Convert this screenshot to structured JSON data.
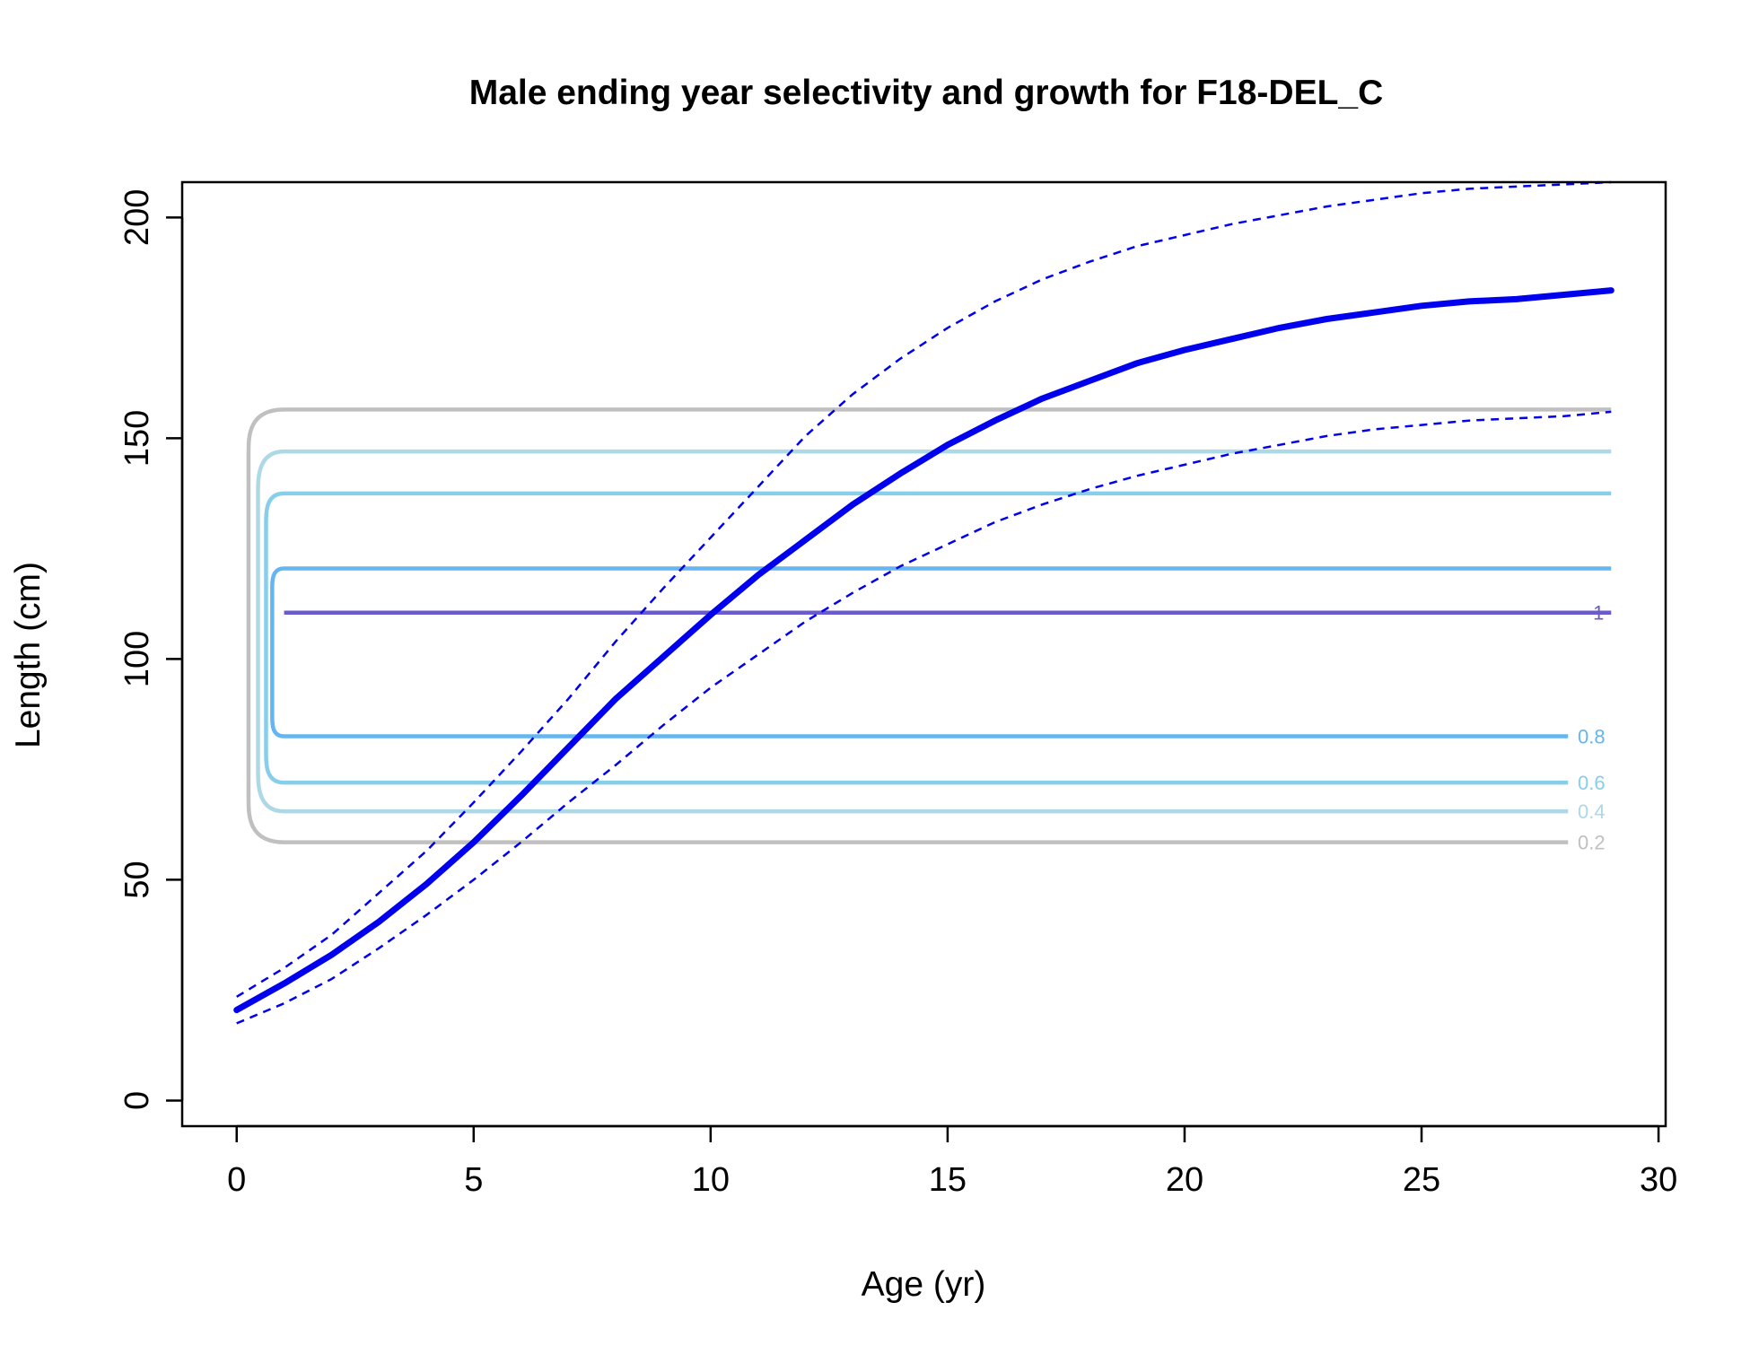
{
  "chart_data": {
    "type": "line",
    "title": "Male ending year selectivity and growth for F18-DEL_C",
    "xlabel": "Age (yr)",
    "ylabel": "Length (cm)",
    "xlim": [
      -1.15,
      30.15
    ],
    "ylim": [
      -5.8,
      208
    ],
    "xticks": [
      0,
      5,
      10,
      15,
      20,
      25,
      30
    ],
    "yticks": [
      0,
      50,
      100,
      150,
      200
    ],
    "grid": false,
    "legend": "none",
    "growth": {
      "color": "#0000ee",
      "age": [
        0,
        1,
        2,
        3,
        4,
        5,
        6,
        7,
        8,
        9,
        10,
        11,
        12,
        13,
        14,
        15,
        16,
        17,
        18,
        19,
        20,
        21,
        22,
        23,
        24,
        25,
        26,
        27,
        28,
        29
      ],
      "mean": [
        20.5,
        26.5,
        33.0,
        40.5,
        49.0,
        58.5,
        69.0,
        80.0,
        91.0,
        100.5,
        110.0,
        119.0,
        127.0,
        135.0,
        142.0,
        148.5,
        154.0,
        159.0,
        163.0,
        167.0,
        170.0,
        172.5,
        175.0,
        177.0,
        178.5,
        180.0,
        181.0,
        181.5,
        182.5,
        183.5
      ],
      "lower": [
        17.5,
        22.0,
        27.5,
        34.5,
        42.0,
        50.0,
        58.5,
        67.5,
        76.0,
        85.0,
        93.5,
        101.0,
        108.5,
        115.0,
        121.0,
        126.0,
        131.0,
        135.0,
        138.5,
        141.5,
        144.0,
        146.5,
        148.5,
        150.5,
        152.0,
        153.0,
        154.0,
        154.5,
        155.0,
        156.0
      ],
      "upper": [
        23.5,
        30.0,
        37.5,
        47.0,
        56.5,
        67.5,
        79.0,
        91.0,
        104.0,
        116.0,
        127.5,
        139.0,
        150.5,
        160.0,
        168.0,
        175.0,
        181.0,
        186.0,
        190.0,
        193.5,
        196.0,
        198.5,
        200.5,
        202.5,
        204.0,
        205.5,
        206.5,
        207.0,
        207.5,
        208.0
      ]
    },
    "contours": [
      {
        "level": "0.2",
        "color": "#c0c0c0",
        "low": 58.5,
        "high": 156.5,
        "x_left": 0.25,
        "labeled": true
      },
      {
        "level": "0.4",
        "color": "#add8e6",
        "low": 65.5,
        "high": 147.0,
        "x_left": 0.45,
        "labeled": true
      },
      {
        "level": "0.6",
        "color": "#87ceeb",
        "low": 72.0,
        "high": 137.5,
        "x_left": 0.62,
        "labeled": true
      },
      {
        "level": "0.8",
        "color": "#64b5f0",
        "low": 82.5,
        "high": 120.5,
        "x_left": 0.75,
        "labeled": true
      },
      {
        "level": "1",
        "color": "#6a5acd",
        "low": 110.5,
        "high": 110.5,
        "x_left": 1.0,
        "labeled": true
      }
    ]
  }
}
